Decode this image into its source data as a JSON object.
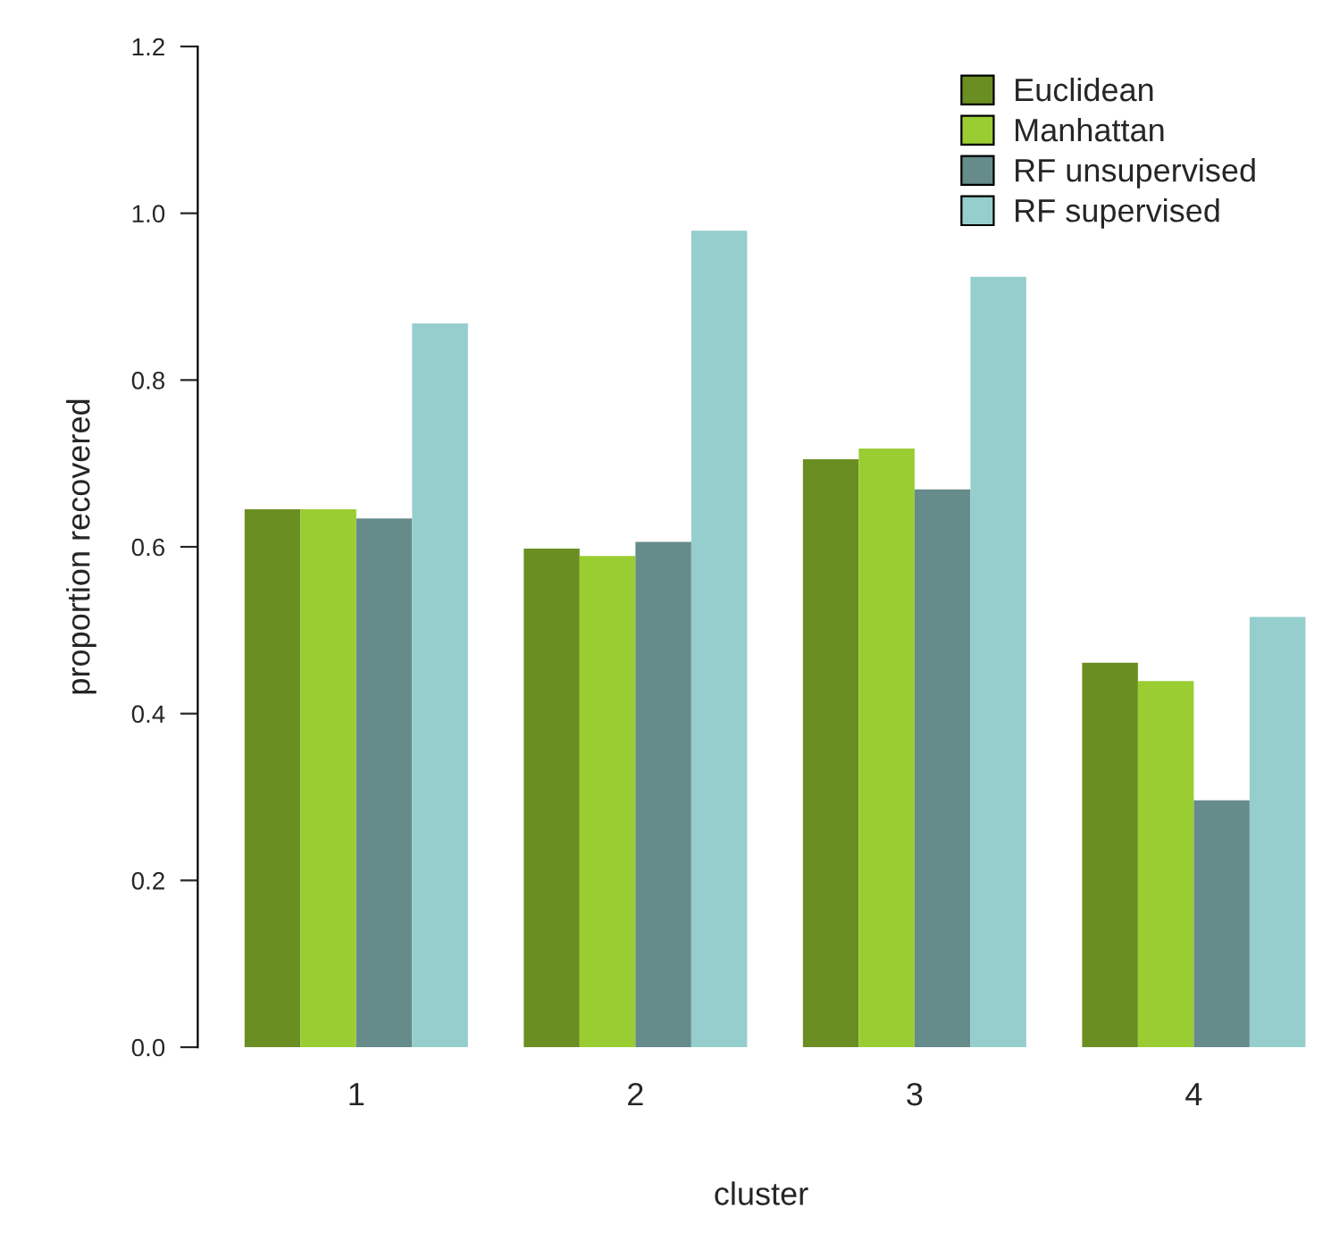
{
  "chart_data": {
    "type": "bar",
    "xlabel": "cluster",
    "ylabel": "proportion recovered",
    "categories": [
      "1",
      "2",
      "3",
      "4"
    ],
    "series": [
      {
        "name": "Euclidean",
        "color": "#6b8e23",
        "values": [
          0.645,
          0.598,
          0.705,
          0.461
        ]
      },
      {
        "name": "Manhattan",
        "color": "#9acd32",
        "values": [
          0.645,
          0.589,
          0.718,
          0.439
        ]
      },
      {
        "name": "RF unsupervised",
        "color": "#668b8b",
        "values": [
          0.634,
          0.606,
          0.669,
          0.296
        ]
      },
      {
        "name": "RF supervised",
        "color": "#96cdcd",
        "values": [
          0.868,
          0.979,
          0.924,
          0.516
        ]
      }
    ],
    "ylim": [
      0,
      1.2
    ],
    "yticks": [
      {
        "value": 0,
        "label": "0.0"
      },
      {
        "value": 0.2,
        "label": "0.2"
      },
      {
        "value": 0.4,
        "label": "0.4"
      },
      {
        "value": 0.6,
        "label": "0.6"
      },
      {
        "value": 0.8,
        "label": "0.8"
      },
      {
        "value": 1.0,
        "label": "1.0"
      },
      {
        "value": 1.2,
        "label": "1.2"
      }
    ],
    "legend": "top right"
  }
}
